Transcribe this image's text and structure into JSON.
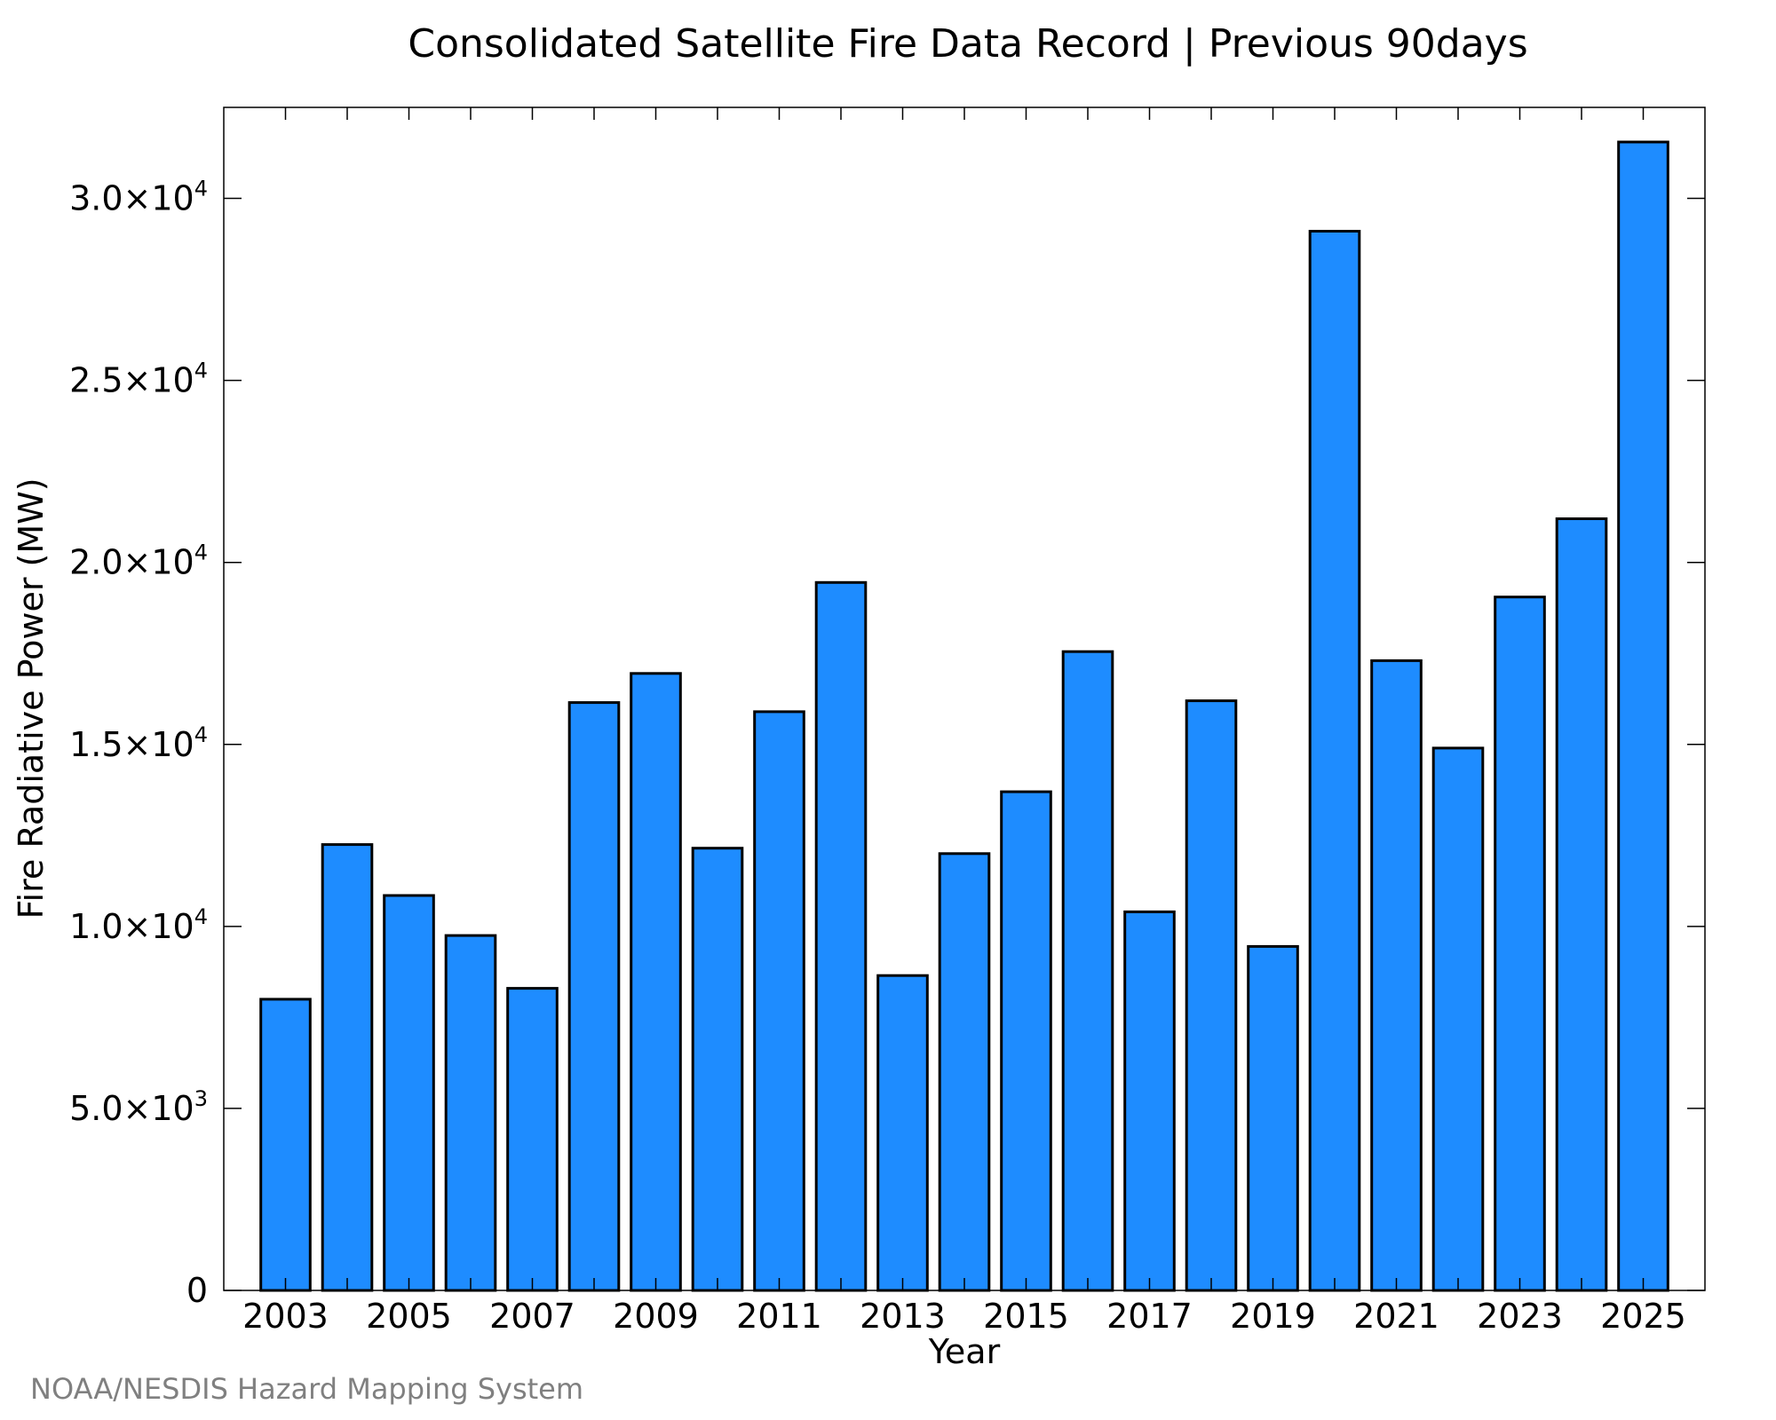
{
  "chart_data": {
    "type": "bar",
    "title": "Consolidated Satellite Fire Data Record | Previous 90days",
    "xlabel": "Year",
    "ylabel": "Fire Radiative Power (MW)",
    "categories": [
      "2003",
      "2004",
      "2005",
      "2006",
      "2007",
      "2008",
      "2009",
      "2010",
      "2011",
      "2012",
      "2013",
      "2014",
      "2015",
      "2016",
      "2017",
      "2018",
      "2019",
      "2020",
      "2021",
      "2022",
      "2023",
      "2024",
      "2025"
    ],
    "values": [
      8000,
      12250,
      10850,
      9750,
      8300,
      16150,
      16950,
      12150,
      15900,
      19450,
      8650,
      12000,
      13700,
      17550,
      10400,
      16200,
      9450,
      29100,
      17300,
      14900,
      19050,
      21200,
      31550
    ],
    "xlim": [
      2002.0,
      2026.0
    ],
    "ylim": [
      0,
      32500
    ],
    "x_ticks": [
      2003,
      2005,
      2007,
      2009,
      2011,
      2013,
      2015,
      2017,
      2019,
      2021,
      2023,
      2025
    ],
    "x_tick_labels": [
      "2003",
      "2005",
      "2007",
      "2009",
      "2011",
      "2013",
      "2015",
      "2017",
      "2019",
      "2021",
      "2023",
      "2025"
    ],
    "y_ticks": [
      0,
      5000,
      10000,
      15000,
      20000,
      25000,
      30000
    ],
    "y_tick_labels": [
      {
        "mantissa": "0",
        "exp": ""
      },
      {
        "mantissa": "5.0×10",
        "exp": "3"
      },
      {
        "mantissa": "1.0×10",
        "exp": "4"
      },
      {
        "mantissa": "1.5×10",
        "exp": "4"
      },
      {
        "mantissa": "2.0×10",
        "exp": "4"
      },
      {
        "mantissa": "2.5×10",
        "exp": "4"
      },
      {
        "mantissa": "3.0×10",
        "exp": "4"
      }
    ],
    "grid": false,
    "bar_color": "#1e8cff",
    "bar_edge_color": "#000000"
  },
  "credit": "NOAA/NESDIS Hazard Mapping System"
}
